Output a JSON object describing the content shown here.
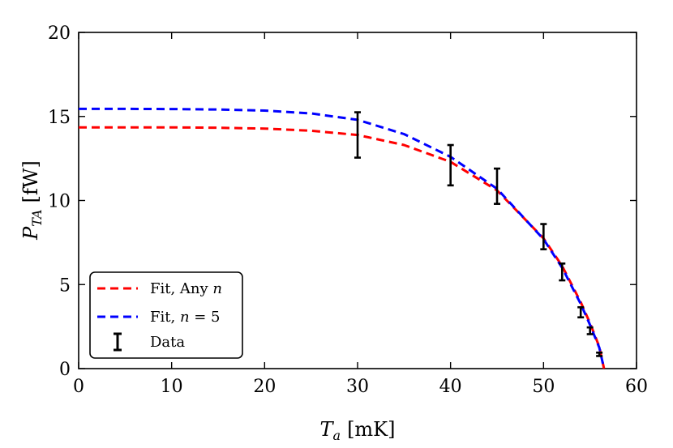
{
  "chart_data": {
    "type": "line",
    "xlabel_main": "T",
    "xlabel_sub": "a",
    "xlabel_unit": "[mK]",
    "ylabel_main": "P",
    "ylabel_sub": "TA",
    "ylabel_unit": "[fW]",
    "xlim": [
      0,
      60
    ],
    "ylim": [
      0,
      20
    ],
    "xticks": [
      0,
      10,
      20,
      30,
      40,
      50,
      60
    ],
    "yticks": [
      0,
      5,
      10,
      15,
      20
    ],
    "grid": false,
    "legend_position": "bottom-left",
    "series": [
      {
        "name": "Fit, Any n",
        "style": "dashed",
        "color": "#ff0000",
        "x": [
          0,
          5,
          10,
          15,
          20,
          25,
          30,
          35,
          40,
          45,
          50,
          52,
          54,
          55,
          56,
          56.5
        ],
        "y": [
          14.35,
          14.35,
          14.35,
          14.33,
          14.28,
          14.15,
          13.9,
          13.3,
          12.3,
          10.6,
          7.75,
          6.1,
          3.95,
          2.7,
          1.3,
          0.0
        ]
      },
      {
        "name": "Fit, n = 5",
        "style": "dashed",
        "color": "#0000ff",
        "x": [
          0,
          5,
          10,
          15,
          20,
          25,
          30,
          35,
          40,
          45,
          50,
          52,
          54,
          55,
          56,
          56.5
        ],
        "y": [
          15.45,
          15.45,
          15.44,
          15.41,
          15.35,
          15.18,
          14.8,
          13.95,
          12.6,
          10.7,
          7.7,
          6.0,
          3.85,
          2.6,
          1.25,
          0.0
        ]
      },
      {
        "name": "Data",
        "style": "errorbar",
        "color": "#000000",
        "x": [
          30,
          40,
          45,
          50,
          52,
          54,
          55,
          56
        ],
        "y": [
          13.9,
          12.1,
          10.85,
          7.85,
          5.75,
          3.35,
          2.25,
          0.85
        ],
        "yerr": [
          1.35,
          1.2,
          1.05,
          0.75,
          0.5,
          0.3,
          0.2,
          0.1
        ]
      }
    ],
    "legend": [
      {
        "label_text": "Fit, Any ",
        "label_math": "n"
      },
      {
        "label_text": "Fit, ",
        "label_math": "n",
        "label_rest": " = 5"
      },
      {
        "label_text": "Data"
      }
    ]
  }
}
